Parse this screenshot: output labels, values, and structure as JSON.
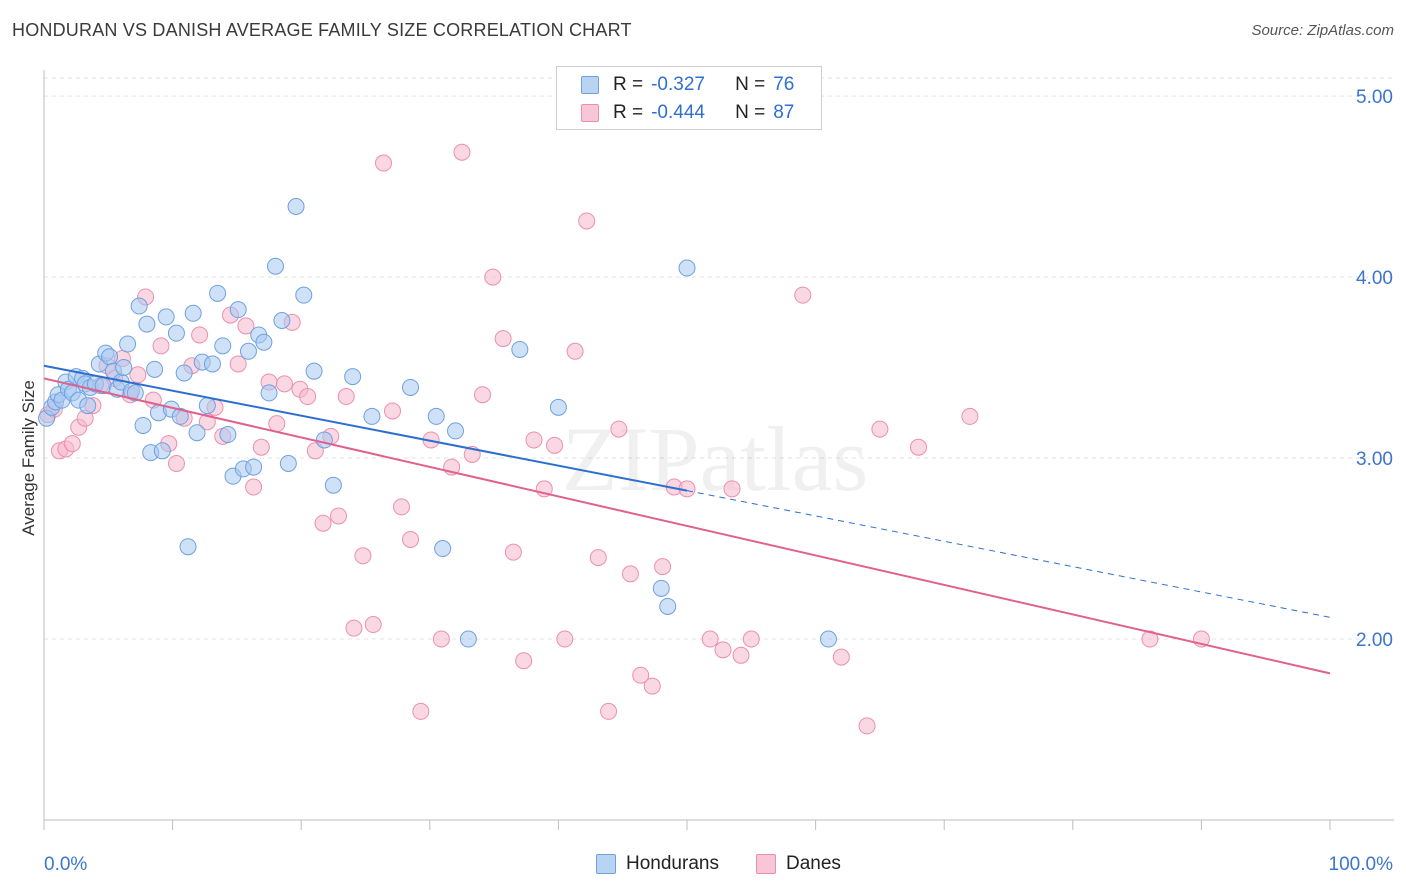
{
  "title": "HONDURAN VS DANISH AVERAGE FAMILY SIZE CORRELATION CHART",
  "source": "Source: ZipAtlas.com",
  "colors": {
    "blue_fill": "#a8c8f0",
    "blue_stroke": "#6fa0e0",
    "blue_line": "#2d6fcf",
    "pink_fill": "#f6b8cc",
    "pink_stroke": "#ec8fae",
    "pink_line": "#e0608e",
    "tick_label": "#3b76cc",
    "grid": "#e3e3e3"
  },
  "legend": {
    "rows": [
      {
        "r_label": "R =",
        "r_value": "-0.327",
        "n_label": "N =",
        "n_value": "76"
      },
      {
        "r_label": "R =",
        "r_value": "-0.444",
        "n_label": "N =",
        "n_value": "87"
      }
    ]
  },
  "chart_data": {
    "type": "scatter",
    "xlabel": "",
    "ylabel": "Average Family Size",
    "xlim": [
      0,
      100
    ],
    "ylim": [
      1.0,
      5.1
    ],
    "x_tick_labels": [
      "0.0%",
      "100.0%"
    ],
    "y_ticks": [
      2.0,
      3.0,
      4.0,
      5.0
    ],
    "y_tick_labels": [
      "2.00",
      "3.00",
      "4.00",
      "5.00"
    ],
    "grid": true,
    "watermark": "ZIPatlas",
    "series": [
      {
        "name": "Hondurans",
        "trend": {
          "x0": 0,
          "y0": 3.51,
          "x1": 50,
          "y1": 2.82,
          "dashed_to_x": 100,
          "dashed_to_y": 2.12
        },
        "points": [
          [
            0.2,
            3.22
          ],
          [
            0.6,
            3.28
          ],
          [
            0.9,
            3.31
          ],
          [
            1.1,
            3.35
          ],
          [
            1.4,
            3.32
          ],
          [
            1.7,
            3.42
          ],
          [
            1.9,
            3.38
          ],
          [
            2.2,
            3.36
          ],
          [
            2.5,
            3.45
          ],
          [
            2.7,
            3.32
          ],
          [
            3.0,
            3.44
          ],
          [
            3.2,
            3.41
          ],
          [
            3.4,
            3.29
          ],
          [
            3.6,
            3.39
          ],
          [
            4.0,
            3.41
          ],
          [
            4.3,
            3.52
          ],
          [
            4.6,
            3.4
          ],
          [
            4.8,
            3.58
          ],
          [
            5.1,
            3.56
          ],
          [
            5.4,
            3.48
          ],
          [
            5.7,
            3.38
          ],
          [
            6.0,
            3.42
          ],
          [
            6.2,
            3.5
          ],
          [
            6.5,
            3.63
          ],
          [
            6.8,
            3.37
          ],
          [
            7.1,
            3.36
          ],
          [
            7.4,
            3.84
          ],
          [
            7.7,
            3.18
          ],
          [
            8.0,
            3.74
          ],
          [
            8.3,
            3.03
          ],
          [
            8.6,
            3.49
          ],
          [
            8.9,
            3.25
          ],
          [
            9.2,
            3.04
          ],
          [
            9.5,
            3.78
          ],
          [
            9.9,
            3.27
          ],
          [
            10.3,
            3.69
          ],
          [
            10.6,
            3.23
          ],
          [
            10.9,
            3.47
          ],
          [
            11.2,
            2.51
          ],
          [
            11.6,
            3.8
          ],
          [
            11.9,
            3.14
          ],
          [
            12.3,
            3.53
          ],
          [
            12.7,
            3.29
          ],
          [
            13.1,
            3.52
          ],
          [
            13.5,
            3.91
          ],
          [
            13.9,
            3.62
          ],
          [
            14.3,
            3.13
          ],
          [
            14.7,
            2.9
          ],
          [
            15.1,
            3.82
          ],
          [
            15.5,
            2.94
          ],
          [
            15.9,
            3.59
          ],
          [
            16.3,
            2.95
          ],
          [
            16.7,
            3.68
          ],
          [
            17.1,
            3.64
          ],
          [
            17.5,
            3.36
          ],
          [
            18.0,
            4.06
          ],
          [
            18.5,
            3.76
          ],
          [
            19.0,
            2.97
          ],
          [
            19.6,
            4.39
          ],
          [
            20.2,
            3.9
          ],
          [
            21.0,
            3.48
          ],
          [
            21.8,
            3.1
          ],
          [
            22.5,
            2.85
          ],
          [
            24.0,
            3.45
          ],
          [
            25.5,
            3.23
          ],
          [
            28.5,
            3.39
          ],
          [
            30.5,
            3.23
          ],
          [
            31.0,
            2.5
          ],
          [
            32.0,
            3.15
          ],
          [
            33.0,
            2.0
          ],
          [
            37.0,
            3.6
          ],
          [
            40.0,
            3.28
          ],
          [
            48.0,
            2.28
          ],
          [
            48.5,
            2.18
          ],
          [
            50.0,
            4.05
          ],
          [
            61.0,
            2.0
          ]
        ]
      },
      {
        "name": "Danes",
        "trend": {
          "x0": 0,
          "y0": 3.44,
          "x1": 100,
          "y1": 1.81
        },
        "points": [
          [
            0.3,
            3.24
          ],
          [
            0.8,
            3.27
          ],
          [
            1.2,
            3.04
          ],
          [
            1.7,
            3.05
          ],
          [
            2.2,
            3.08
          ],
          [
            2.7,
            3.17
          ],
          [
            3.2,
            3.22
          ],
          [
            3.8,
            3.29
          ],
          [
            4.4,
            3.4
          ],
          [
            4.9,
            3.51
          ],
          [
            5.5,
            3.44
          ],
          [
            6.1,
            3.55
          ],
          [
            6.7,
            3.35
          ],
          [
            7.3,
            3.46
          ],
          [
            7.9,
            3.89
          ],
          [
            8.5,
            3.32
          ],
          [
            9.1,
            3.62
          ],
          [
            9.7,
            3.08
          ],
          [
            10.3,
            2.97
          ],
          [
            10.9,
            3.22
          ],
          [
            11.5,
            3.51
          ],
          [
            12.1,
            3.68
          ],
          [
            12.7,
            3.2
          ],
          [
            13.3,
            3.28
          ],
          [
            13.9,
            3.12
          ],
          [
            14.5,
            3.79
          ],
          [
            15.1,
            3.52
          ],
          [
            15.7,
            3.73
          ],
          [
            16.3,
            2.84
          ],
          [
            16.9,
            3.06
          ],
          [
            17.5,
            3.42
          ],
          [
            18.1,
            3.19
          ],
          [
            18.7,
            3.41
          ],
          [
            19.3,
            3.75
          ],
          [
            19.9,
            3.38
          ],
          [
            20.5,
            3.34
          ],
          [
            21.1,
            3.04
          ],
          [
            21.7,
            2.64
          ],
          [
            22.3,
            3.12
          ],
          [
            22.9,
            2.68
          ],
          [
            23.5,
            3.34
          ],
          [
            24.1,
            2.06
          ],
          [
            24.8,
            2.46
          ],
          [
            25.6,
            2.08
          ],
          [
            26.4,
            4.63
          ],
          [
            27.1,
            3.26
          ],
          [
            27.8,
            2.73
          ],
          [
            28.5,
            2.55
          ],
          [
            29.3,
            1.6
          ],
          [
            30.1,
            3.1
          ],
          [
            30.9,
            2.0
          ],
          [
            31.7,
            2.95
          ],
          [
            32.5,
            4.69
          ],
          [
            33.3,
            3.02
          ],
          [
            34.1,
            3.35
          ],
          [
            34.9,
            4.0
          ],
          [
            35.7,
            3.66
          ],
          [
            36.5,
            2.48
          ],
          [
            37.3,
            1.88
          ],
          [
            38.1,
            3.1
          ],
          [
            38.9,
            2.83
          ],
          [
            39.7,
            3.07
          ],
          [
            40.5,
            2.0
          ],
          [
            41.3,
            3.59
          ],
          [
            42.2,
            4.31
          ],
          [
            43.1,
            2.45
          ],
          [
            43.9,
            1.6
          ],
          [
            44.7,
            3.16
          ],
          [
            45.6,
            2.36
          ],
          [
            46.4,
            1.8
          ],
          [
            47.3,
            1.74
          ],
          [
            48.1,
            2.4
          ],
          [
            49.0,
            2.84
          ],
          [
            50.0,
            2.83
          ],
          [
            51.8,
            2.0
          ],
          [
            52.8,
            1.94
          ],
          [
            53.5,
            2.83
          ],
          [
            54.2,
            1.91
          ],
          [
            55.0,
            2.0
          ],
          [
            59.0,
            3.9
          ],
          [
            62.0,
            1.9
          ],
          [
            64.0,
            1.52
          ],
          [
            65.0,
            3.16
          ],
          [
            68.0,
            3.06
          ],
          [
            72.0,
            3.23
          ],
          [
            86.0,
            2.0
          ],
          [
            90.0,
            2.0
          ]
        ]
      }
    ]
  }
}
